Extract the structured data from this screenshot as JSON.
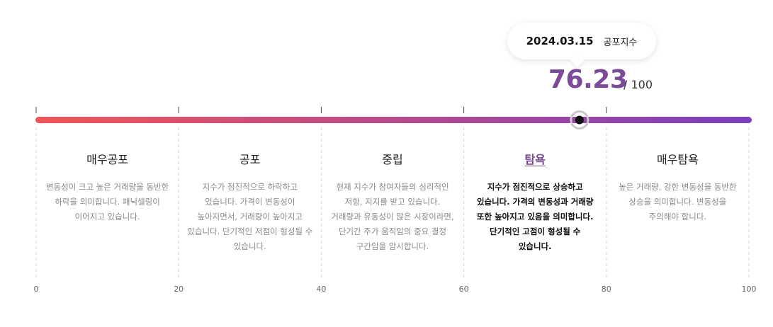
{
  "tooltip": {
    "date": "2024.03.15",
    "name": "공포지수"
  },
  "current": {
    "value": "76.23",
    "max_label": "/ 100"
  },
  "chart_data": {
    "type": "gauge",
    "value": 76.23,
    "range": [
      0,
      100
    ],
    "ticks": [
      0,
      20,
      40,
      60,
      80,
      100
    ],
    "gradient": [
      "#f25557",
      "#7a3fbf"
    ],
    "zones": [
      {
        "name": "매우공포",
        "from": 0,
        "to": 20,
        "desc": "변동성이 크고 높은 거래량을 동반한 하락을 의미합니다. 패닉셀링이 이어지고 있습니다."
      },
      {
        "name": "공포",
        "from": 20,
        "to": 40,
        "desc": "지수가 점진적으로 하락하고 있습니다. 가격이 변동성이 높아지면서, 거래량이 높아지고 있습니다. 단기적인 저점이 형성될 수 있습니다."
      },
      {
        "name": "중립",
        "from": 40,
        "to": 60,
        "desc": "현재 지수가 참여자들의 심리적인 저항, 지지를 받고 있습니다. 거래량과 유동성이 많은 시장이라면, 단기간 주가 움직임의 중요 결정 구간임을 암시합니다."
      },
      {
        "name": "탐욕",
        "from": 60,
        "to": 80,
        "desc": "지수가 점진적으로 상승하고 있습니다. 가격의 변동성과 거래량 또한 높아지고 있음을 의미합니다. 단기적인 고점이 형성될 수 있습니다.",
        "active": true
      },
      {
        "name": "매우탐욕",
        "from": 80,
        "to": 100,
        "desc": "높은 거래량, 강한 변동성을 동반한 상승을 의미합니다. 변동성을 주의해야 합니다."
      }
    ]
  }
}
